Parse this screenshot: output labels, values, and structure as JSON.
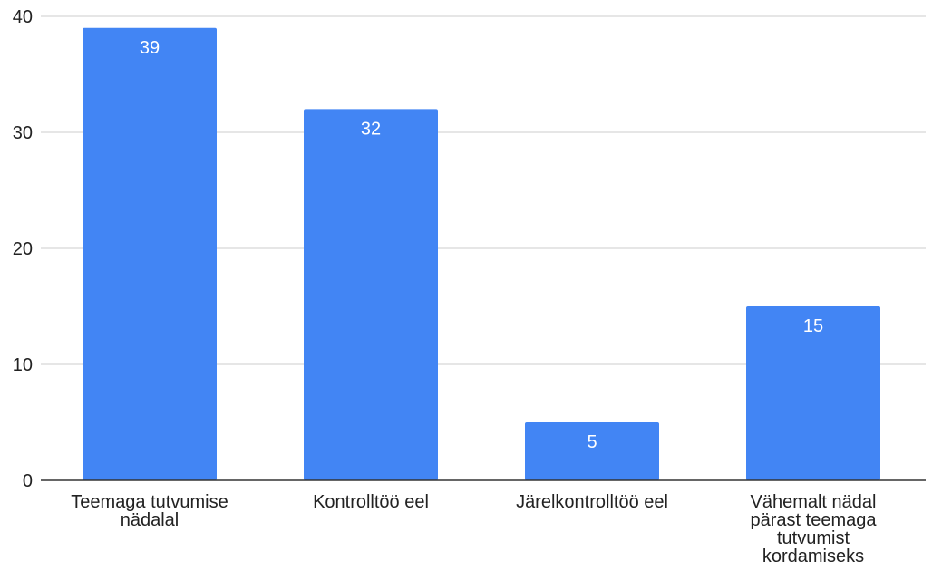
{
  "chart_data": {
    "type": "bar",
    "categories": [
      [
        "Teemaga tutvumise",
        "nädalal"
      ],
      [
        "Kontrolltöö eel"
      ],
      [
        "Järelkontrolltöö eel"
      ],
      [
        "Vähemalt nädal",
        "pärast teemaga",
        "tutvumist",
        "kordamiseks"
      ]
    ],
    "values": [
      39,
      32,
      5,
      15
    ],
    "data_labels": [
      "39",
      "32",
      "5",
      "15"
    ],
    "title": "",
    "xlabel": "",
    "ylabel": "",
    "ylim": [
      0,
      40
    ],
    "yticks": [
      0,
      10,
      20,
      30,
      40
    ],
    "grid": true,
    "legend": "none",
    "colors": {
      "bar": "#4285f4",
      "grid": "#cccccc",
      "axis": "#333333",
      "text": "#222222",
      "data_label": "#ffffff"
    }
  }
}
